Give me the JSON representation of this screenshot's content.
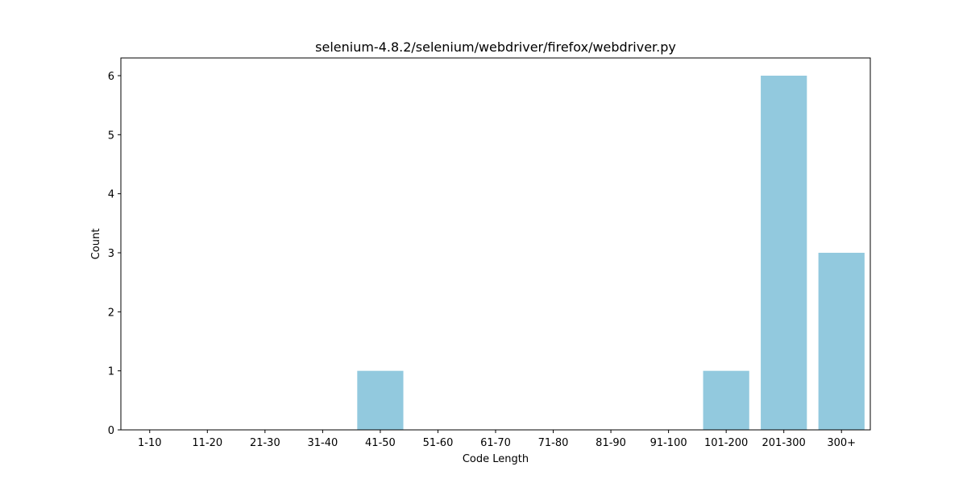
{
  "chart_data": {
    "type": "bar",
    "title": "selenium-4.8.2/selenium/webdriver/firefox/webdriver.py",
    "xlabel": "Code Length",
    "ylabel": "Count",
    "categories": [
      "1-10",
      "11-20",
      "21-30",
      "31-40",
      "41-50",
      "51-60",
      "61-70",
      "71-80",
      "81-90",
      "91-100",
      "101-200",
      "201-300",
      "300+"
    ],
    "values": [
      0,
      0,
      0,
      0,
      1,
      0,
      0,
      0,
      0,
      0,
      1,
      6,
      3
    ],
    "ylim": [
      0,
      6.3
    ],
    "yticks": [
      0,
      1,
      2,
      3,
      4,
      5,
      6
    ],
    "bar_color": "#92c9de",
    "grid": false,
    "legend": "none"
  }
}
